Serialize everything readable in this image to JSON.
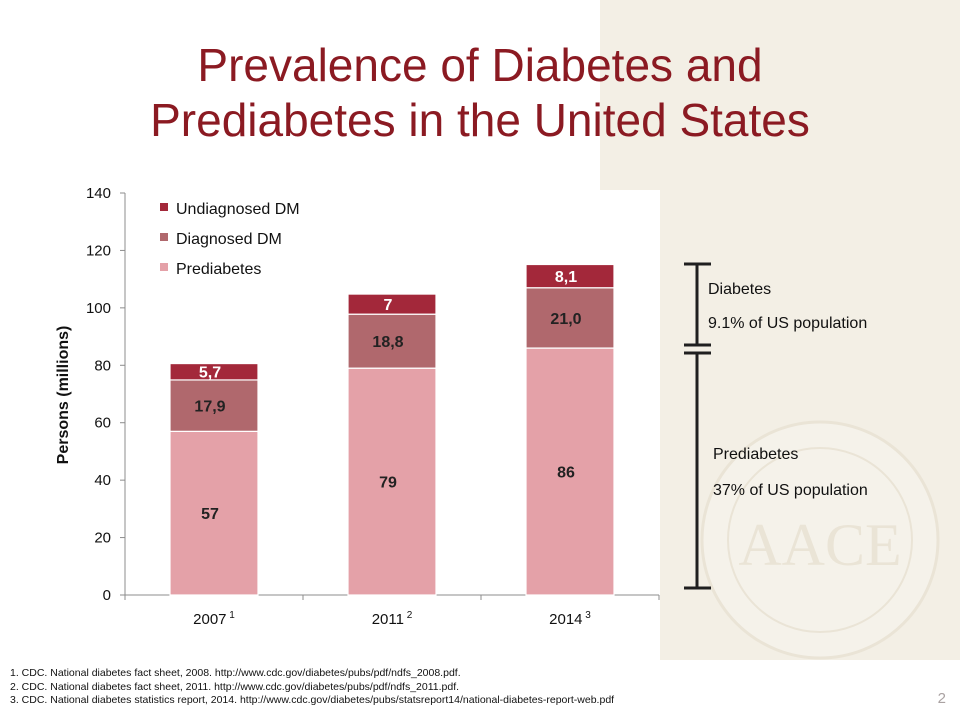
{
  "slide": {
    "title_line1": "Prevalence of Diabetes and",
    "title_line2": "Prediabetes in the United States",
    "page_number": "2",
    "footnotes": [
      "1. CDC. National diabetes fact sheet, 2008. http://www.cdc.gov/diabetes/pubs/pdf/ndfs_2008.pdf.",
      "2. CDC. National diabetes fact sheet, 2011. http://www.cdc.gov/diabetes/pubs/pdf/ndfs_2011.pdf.",
      "3. CDC. National diabetes statistics report, 2014. http://www.cdc.gov/diabetes/pubs/statsreport14/national-diabetes-report-web.pdf"
    ],
    "brackets": {
      "diabetes_label": "Diabetes",
      "diabetes_sub": "9.1% of US population",
      "prediabetes_label": "Prediabetes",
      "prediabetes_sub": "37% of US population"
    },
    "colors": {
      "title": "#8b1a22",
      "prediabetes": "#e4a1a8",
      "diagnosed": "#b0686d",
      "undiagnosed": "#a3283a",
      "bracket": "#1f1f1f"
    },
    "logo_text": "AACE"
  },
  "chart_data": {
    "type": "bar",
    "stacked": true,
    "categories": [
      {
        "label": "2007",
        "sup": "1"
      },
      {
        "label": "2011",
        "sup": "2"
      },
      {
        "label": "2014",
        "sup": "3"
      }
    ],
    "series": [
      {
        "name": "Prediabetes",
        "values": [
          57,
          79,
          86
        ],
        "labels": [
          "57",
          "79",
          "86"
        ],
        "color": "#e4a1a8",
        "label_color": "#222222"
      },
      {
        "name": "Diagnosed DM",
        "values": [
          17.9,
          18.8,
          21.0
        ],
        "labels": [
          "17,9",
          "18,8",
          "21,0"
        ],
        "color": "#b0686d",
        "label_color": "#222222"
      },
      {
        "name": "Undiagnosed DM",
        "values": [
          5.7,
          7,
          8.1
        ],
        "labels": [
          "5,7",
          "7",
          "8,1"
        ],
        "color": "#a3283a",
        "label_color": "#ffffff"
      }
    ],
    "legend_order": [
      "Undiagnosed DM",
      "Diagnosed DM",
      "Prediabetes"
    ],
    "legend_position": "top-left",
    "ylabel": "Persons (millions)",
    "xlabel": "",
    "ylim": [
      0,
      140
    ],
    "yticks": [
      0,
      20,
      40,
      60,
      80,
      100,
      120,
      140
    ],
    "grid": false
  }
}
